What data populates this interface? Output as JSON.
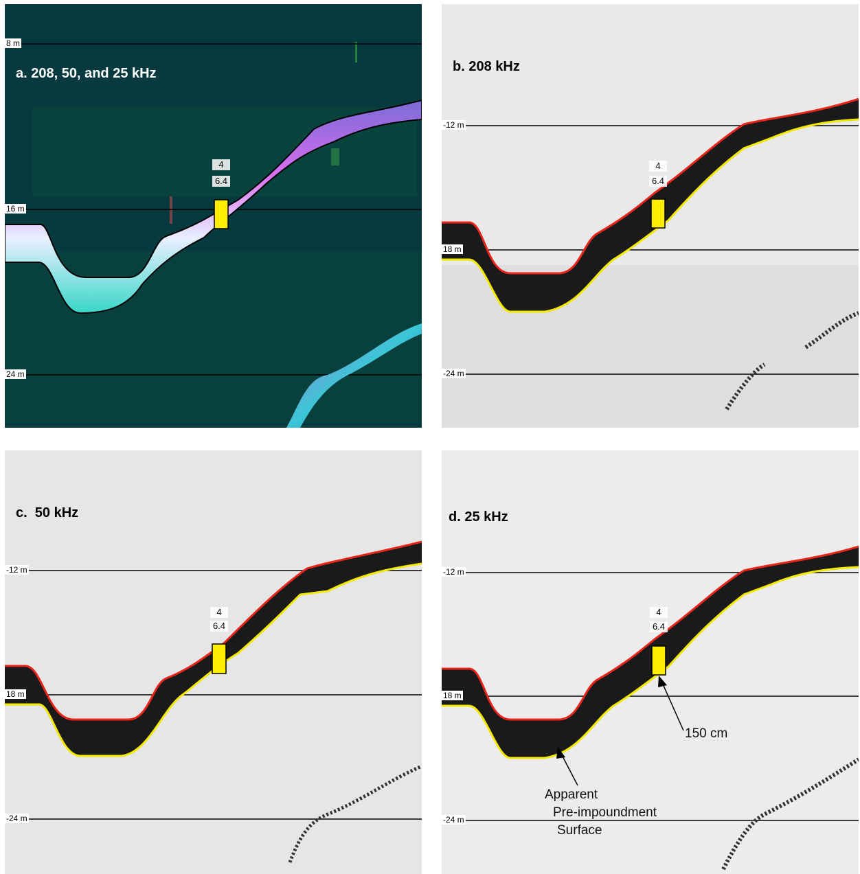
{
  "panels": {
    "a": {
      "title": "a. 208, 50, and 25 kHz",
      "depths": [
        "8 m",
        "16 m",
        "24 m"
      ],
      "mark_top": "4",
      "mark_bottom": "6.4"
    },
    "b": {
      "title": "b. 208 kHz",
      "depths": [
        "-12 m",
        "18 m",
        "-24 m"
      ],
      "mark_top": "4",
      "mark_bottom": "6.4"
    },
    "c": {
      "title": "c.  50 kHz",
      "depths": [
        "-12 m",
        "18 m",
        "-24 m"
      ],
      "mark_top": "4",
      "mark_bottom": "6.4"
    },
    "d": {
      "title": "d. 25 kHz",
      "depths": [
        "-12 m",
        "18 m",
        "-24 m"
      ],
      "mark_top": "4",
      "mark_bottom": "6.4",
      "annotation_core": "150 cm",
      "annotation_surface_1": "Apparent",
      "annotation_surface_2": "Pre-impoundment",
      "annotation_surface_3": "Surface"
    }
  },
  "colors": {
    "sediment_top": "#e8251b",
    "pre_impoundment": "#f2e800",
    "core_marker": "#ffee00",
    "panel_a_bg": "#063a3e"
  }
}
